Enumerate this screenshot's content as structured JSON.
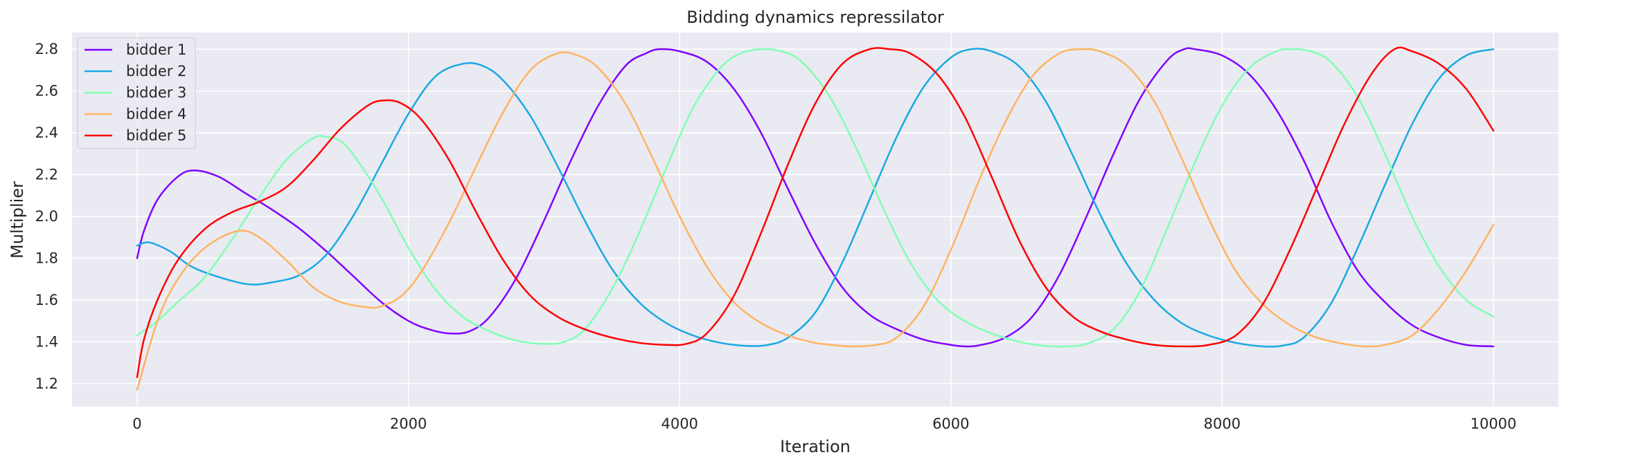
{
  "chart_data": {
    "type": "line",
    "title": "Bidding dynamics repressilator",
    "xlabel": "Iteration",
    "ylabel": "Multiplier",
    "xlim": [
      -480,
      10480
    ],
    "ylim": [
      1.09,
      2.88
    ],
    "x_ticks": [
      0,
      2000,
      4000,
      6000,
      8000,
      10000
    ],
    "x_tick_labels": [
      "0",
      "2000",
      "4000",
      "6000",
      "8000",
      "10000"
    ],
    "y_ticks": [
      1.2,
      1.4,
      1.6,
      1.8,
      2.0,
      2.2,
      2.4,
      2.6,
      2.8
    ],
    "y_tick_labels": [
      "1.2",
      "1.4",
      "1.6",
      "1.8",
      "2.0",
      "2.2",
      "2.4",
      "2.6",
      "2.8"
    ],
    "grid": true,
    "legend_position": "top-left",
    "background": "#eaeaf2",
    "series": [
      {
        "name": "bidder 1",
        "color": "#8000ff",
        "x": [
          0,
          50,
          150,
          300,
          420,
          600,
          800,
          1000,
          1200,
          1400,
          1600,
          1800,
          2000,
          2150,
          2300,
          2450,
          2600,
          2800,
          3000,
          3200,
          3400,
          3600,
          3750,
          3850,
          4000,
          4200,
          4400,
          4600,
          4800,
          5000,
          5200,
          5400,
          5600,
          5800,
          6000,
          6100,
          6200,
          6400,
          6600,
          6800,
          7000,
          7200,
          7400,
          7600,
          7720,
          7800,
          8000,
          8200,
          8400,
          8600,
          8800,
          9000,
          9200,
          9400,
          9600,
          9800,
          10000
        ],
        "y": [
          1.8,
          1.93,
          2.08,
          2.19,
          2.22,
          2.19,
          2.11,
          2.03,
          1.94,
          1.83,
          1.71,
          1.59,
          1.5,
          1.46,
          1.44,
          1.45,
          1.52,
          1.71,
          1.98,
          2.27,
          2.53,
          2.72,
          2.78,
          2.8,
          2.79,
          2.74,
          2.61,
          2.4,
          2.13,
          1.87,
          1.66,
          1.53,
          1.46,
          1.41,
          1.385,
          1.378,
          1.382,
          1.42,
          1.52,
          1.72,
          2.0,
          2.3,
          2.57,
          2.75,
          2.8,
          2.8,
          2.77,
          2.68,
          2.51,
          2.27,
          1.98,
          1.74,
          1.59,
          1.48,
          1.42,
          1.385,
          1.378
        ]
      },
      {
        "name": "bidder 2",
        "color": "#19a9e3",
        "x": [
          0,
          60,
          120,
          250,
          400,
          600,
          820,
          1000,
          1200,
          1400,
          1600,
          1800,
          2000,
          2200,
          2400,
          2550,
          2700,
          2900,
          3100,
          3300,
          3500,
          3700,
          3900,
          4100,
          4300,
          4500,
          4650,
          4800,
          5000,
          5200,
          5400,
          5600,
          5800,
          6000,
          6150,
          6300,
          6500,
          6700,
          6900,
          7100,
          7300,
          7500,
          7700,
          7900,
          8100,
          8300,
          8450,
          8600,
          8800,
          9000,
          9200,
          9400,
          9600,
          9800,
          10000
        ],
        "y": [
          1.86,
          1.875,
          1.87,
          1.83,
          1.76,
          1.71,
          1.675,
          1.685,
          1.72,
          1.82,
          2.01,
          2.25,
          2.49,
          2.67,
          2.73,
          2.72,
          2.65,
          2.48,
          2.24,
          1.98,
          1.75,
          1.59,
          1.49,
          1.43,
          1.395,
          1.38,
          1.385,
          1.42,
          1.54,
          1.78,
          2.08,
          2.38,
          2.62,
          2.76,
          2.8,
          2.79,
          2.72,
          2.55,
          2.29,
          2.01,
          1.77,
          1.6,
          1.49,
          1.43,
          1.395,
          1.378,
          1.382,
          1.42,
          1.58,
          1.85,
          2.15,
          2.44,
          2.66,
          2.77,
          2.8
        ]
      },
      {
        "name": "bidder 3",
        "color": "#80ffb4",
        "x": [
          0,
          150,
          300,
          500,
          700,
          900,
          1100,
          1300,
          1400,
          1500,
          1600,
          1800,
          2000,
          2200,
          2400,
          2600,
          2800,
          3000,
          3150,
          3300,
          3500,
          3700,
          3900,
          4100,
          4300,
          4450,
          4600,
          4750,
          4900,
          5100,
          5300,
          5500,
          5700,
          5900,
          6100,
          6300,
          6500,
          6700,
          6850,
          7000,
          7200,
          7400,
          7600,
          7800,
          8000,
          8200,
          8400,
          8520,
          8650,
          8800,
          9000,
          9200,
          9400,
          9600,
          9800,
          10000
        ],
        "y": [
          1.43,
          1.5,
          1.59,
          1.71,
          1.89,
          2.09,
          2.27,
          2.375,
          2.38,
          2.36,
          2.29,
          2.09,
          1.85,
          1.65,
          1.52,
          1.45,
          1.405,
          1.39,
          1.4,
          1.46,
          1.65,
          1.92,
          2.23,
          2.52,
          2.71,
          2.78,
          2.8,
          2.79,
          2.74,
          2.58,
          2.33,
          2.04,
          1.78,
          1.6,
          1.5,
          1.44,
          1.4,
          1.38,
          1.378,
          1.39,
          1.46,
          1.65,
          1.95,
          2.26,
          2.53,
          2.71,
          2.79,
          2.8,
          2.79,
          2.74,
          2.57,
          2.3,
          2.0,
          1.76,
          1.6,
          1.52
        ]
      },
      {
        "name": "bidder 4",
        "color": "#ffb360",
        "x": [
          0,
          150,
          300,
          500,
          740,
          900,
          1100,
          1300,
          1500,
          1700,
          1800,
          1950,
          2100,
          2300,
          2500,
          2700,
          2900,
          3100,
          3250,
          3400,
          3600,
          3800,
          4000,
          4200,
          4400,
          4600,
          4800,
          5000,
          5200,
          5300,
          5450,
          5600,
          5800,
          6000,
          6200,
          6400,
          6600,
          6800,
          6950,
          7100,
          7300,
          7500,
          7700,
          7900,
          8100,
          8300,
          8500,
          8700,
          8900,
          9050,
          9200,
          9400,
          9600,
          9800,
          10000
        ],
        "y": [
          1.17,
          1.5,
          1.7,
          1.85,
          1.93,
          1.9,
          1.79,
          1.66,
          1.59,
          1.565,
          1.57,
          1.62,
          1.74,
          1.97,
          2.24,
          2.5,
          2.7,
          2.78,
          2.77,
          2.71,
          2.54,
          2.28,
          2.0,
          1.76,
          1.59,
          1.49,
          1.43,
          1.395,
          1.38,
          1.378,
          1.385,
          1.42,
          1.57,
          1.84,
          2.16,
          2.45,
          2.67,
          2.78,
          2.8,
          2.79,
          2.72,
          2.55,
          2.28,
          1.99,
          1.74,
          1.58,
          1.48,
          1.42,
          1.39,
          1.378,
          1.385,
          1.43,
          1.56,
          1.74,
          1.96
        ]
      },
      {
        "name": "bidder 5",
        "color": "#ff0000",
        "x": [
          0,
          50,
          150,
          300,
          500,
          700,
          900,
          1100,
          1300,
          1500,
          1700,
          1820,
          1950,
          2100,
          2300,
          2500,
          2700,
          2900,
          3100,
          3300,
          3500,
          3700,
          3900,
          4050,
          4200,
          4400,
          4600,
          4800,
          5000,
          5200,
          5400,
          5550,
          5700,
          5900,
          6100,
          6300,
          6500,
          6700,
          6900,
          7100,
          7300,
          7500,
          7700,
          7900,
          8100,
          8300,
          8500,
          8700,
          8900,
          9100,
          9270,
          9400,
          9600,
          9800,
          10000
        ],
        "y": [
          1.23,
          1.41,
          1.6,
          1.79,
          1.94,
          2.02,
          2.07,
          2.14,
          2.27,
          2.42,
          2.53,
          2.555,
          2.54,
          2.46,
          2.27,
          2.02,
          1.79,
          1.62,
          1.52,
          1.46,
          1.42,
          1.395,
          1.385,
          1.39,
          1.44,
          1.62,
          1.92,
          2.25,
          2.54,
          2.73,
          2.8,
          2.8,
          2.78,
          2.68,
          2.48,
          2.19,
          1.89,
          1.66,
          1.52,
          1.45,
          1.41,
          1.385,
          1.378,
          1.385,
          1.43,
          1.58,
          1.84,
          2.14,
          2.44,
          2.68,
          2.8,
          2.79,
          2.73,
          2.61,
          2.41
        ]
      }
    ]
  }
}
